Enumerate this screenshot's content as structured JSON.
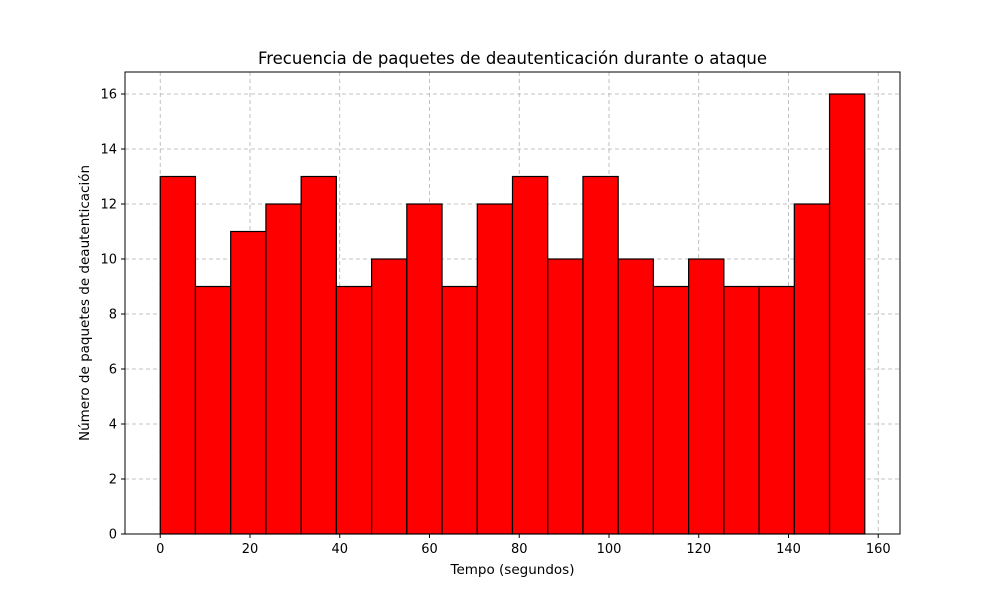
{
  "chart_data": {
    "type": "bar",
    "title": "Frecuencia de paquetes de deautenticación durante o ataque",
    "xlabel": "Tempo (segundos)",
    "ylabel": "Número de paquetes de deautenticación",
    "bin_edges": [
      0,
      7.85,
      15.7,
      23.55,
      31.4,
      39.25,
      47.1,
      54.95,
      62.8,
      70.65,
      78.5,
      86.35,
      94.2,
      102.05,
      109.9,
      117.75,
      125.6,
      133.45,
      141.3,
      149.15,
      157
    ],
    "values": [
      13,
      9,
      11,
      12,
      13,
      9,
      10,
      12,
      9,
      12,
      13,
      10,
      13,
      10,
      9,
      10,
      9,
      9,
      12,
      16
    ],
    "xlim": [
      -7.85,
      164.85
    ],
    "ylim": [
      0,
      16.8
    ],
    "xticks": [
      0,
      20,
      40,
      60,
      80,
      100,
      120,
      140,
      160
    ],
    "yticks": [
      0,
      2,
      4,
      6,
      8,
      10,
      12,
      14,
      16
    ],
    "grid": true,
    "bar_color": "#ff0000",
    "edge_color": "#000000",
    "grid_color": "#b0b0b0"
  }
}
